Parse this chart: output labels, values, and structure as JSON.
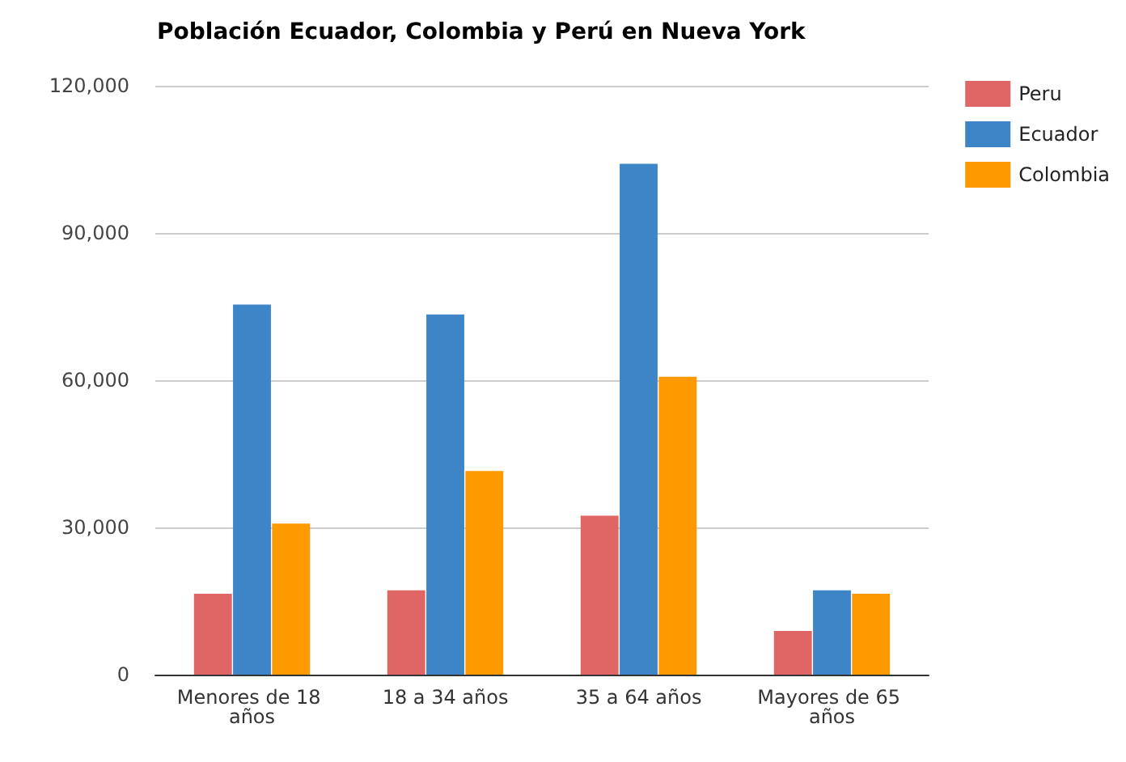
{
  "chart_data": {
    "type": "bar",
    "title": "Población Ecuador, Colombia y Perú en Nueva York",
    "categories": [
      "Menores de 18 años",
      "18 a 34 años",
      "35 a 64 años",
      "Mayores de 65 años"
    ],
    "series": [
      {
        "name": "Peru",
        "color": "#e06666",
        "values": [
          16500,
          17200,
          32400,
          8900
        ]
      },
      {
        "name": "Ecuador",
        "color": "#3d85c6",
        "values": [
          75400,
          73400,
          104100,
          17200
        ]
      },
      {
        "name": "Colombia",
        "color": "#ff9900",
        "values": [
          30800,
          41500,
          60700,
          16500
        ]
      }
    ],
    "ylim": [
      0,
      120000
    ],
    "yticks": [
      0,
      {
        "value": 30000,
        "label": "30,000"
      },
      {
        "value": 60000,
        "label": "60,000"
      },
      {
        "value": 90000,
        "label": "90,000"
      },
      {
        "value": 120000,
        "label": "120,000"
      }
    ],
    "grid": "y",
    "legend": "right"
  }
}
